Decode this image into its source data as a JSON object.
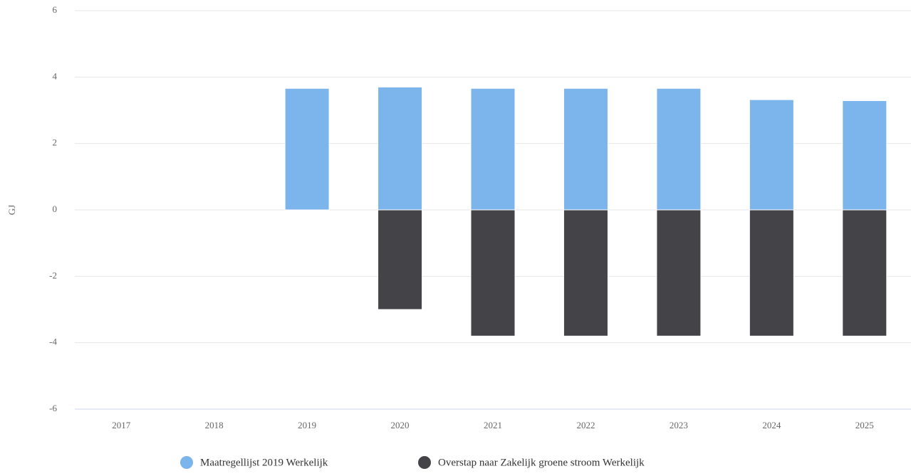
{
  "chart_data": {
    "type": "stacked_bar",
    "y_label": "GJ",
    "categories": [
      "2017",
      "2018",
      "2019",
      "2020",
      "2021",
      "2022",
      "2023",
      "2024",
      "2025"
    ],
    "series": [
      {
        "name": "Maatregellijst 2019 Werkelijk",
        "color": "#7cb5ec",
        "values": [
          null,
          null,
          3.66,
          3.7,
          3.66,
          3.66,
          3.66,
          3.32,
          3.29
        ]
      },
      {
        "name": "Overstap naar Zakelijk groene stroom Werkelijk",
        "color": "#434348",
        "values": [
          null,
          null,
          null,
          -3.0,
          -3.8,
          -3.8,
          -3.8,
          -3.8,
          -3.8
        ]
      }
    ],
    "ylim": [
      -6,
      6
    ],
    "yticks": [
      -6,
      -4,
      -2,
      0,
      2,
      4,
      6
    ],
    "grid": true
  }
}
